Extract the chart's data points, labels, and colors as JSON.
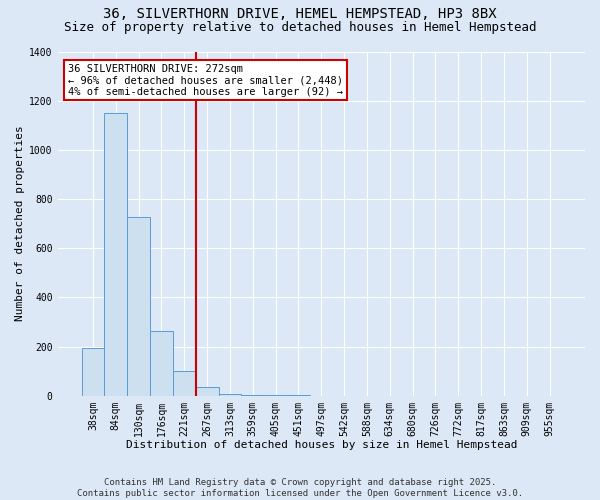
{
  "title": "36, SILVERTHORN DRIVE, HEMEL HEMPSTEAD, HP3 8BX",
  "subtitle": "Size of property relative to detached houses in Hemel Hempstead",
  "xlabel": "Distribution of detached houses by size in Hemel Hempstead",
  "ylabel": "Number of detached properties",
  "bar_color": "#cde0f0",
  "bar_edge_color": "#5b9bd5",
  "background_color": "#dce8f5",
  "grid_color": "#ffffff",
  "categories": [
    "38sqm",
    "84sqm",
    "130sqm",
    "176sqm",
    "221sqm",
    "267sqm",
    "313sqm",
    "359sqm",
    "405sqm",
    "451sqm",
    "497sqm",
    "542sqm",
    "588sqm",
    "634sqm",
    "680sqm",
    "726sqm",
    "772sqm",
    "817sqm",
    "863sqm",
    "909sqm",
    "955sqm"
  ],
  "values": [
    195,
    1150,
    725,
    265,
    100,
    35,
    5,
    2,
    1,
    1,
    0,
    0,
    0,
    0,
    0,
    0,
    0,
    0,
    0,
    0,
    0
  ],
  "vline_index": 5,
  "vline_color": "#cc0000",
  "annotation_text": "36 SILVERTHORN DRIVE: 272sqm\n← 96% of detached houses are smaller (2,448)\n4% of semi-detached houses are larger (92) →",
  "annotation_box_color": "#ffffff",
  "annotation_box_edge": "#cc0000",
  "ylim": [
    0,
    1400
  ],
  "yticks": [
    0,
    200,
    400,
    600,
    800,
    1000,
    1200,
    1400
  ],
  "footer": "Contains HM Land Registry data © Crown copyright and database right 2025.\nContains public sector information licensed under the Open Government Licence v3.0.",
  "title_fontsize": 10,
  "subtitle_fontsize": 9,
  "xlabel_fontsize": 8,
  "ylabel_fontsize": 8,
  "tick_fontsize": 7,
  "footer_fontsize": 6.5,
  "annot_fontsize": 7.5
}
